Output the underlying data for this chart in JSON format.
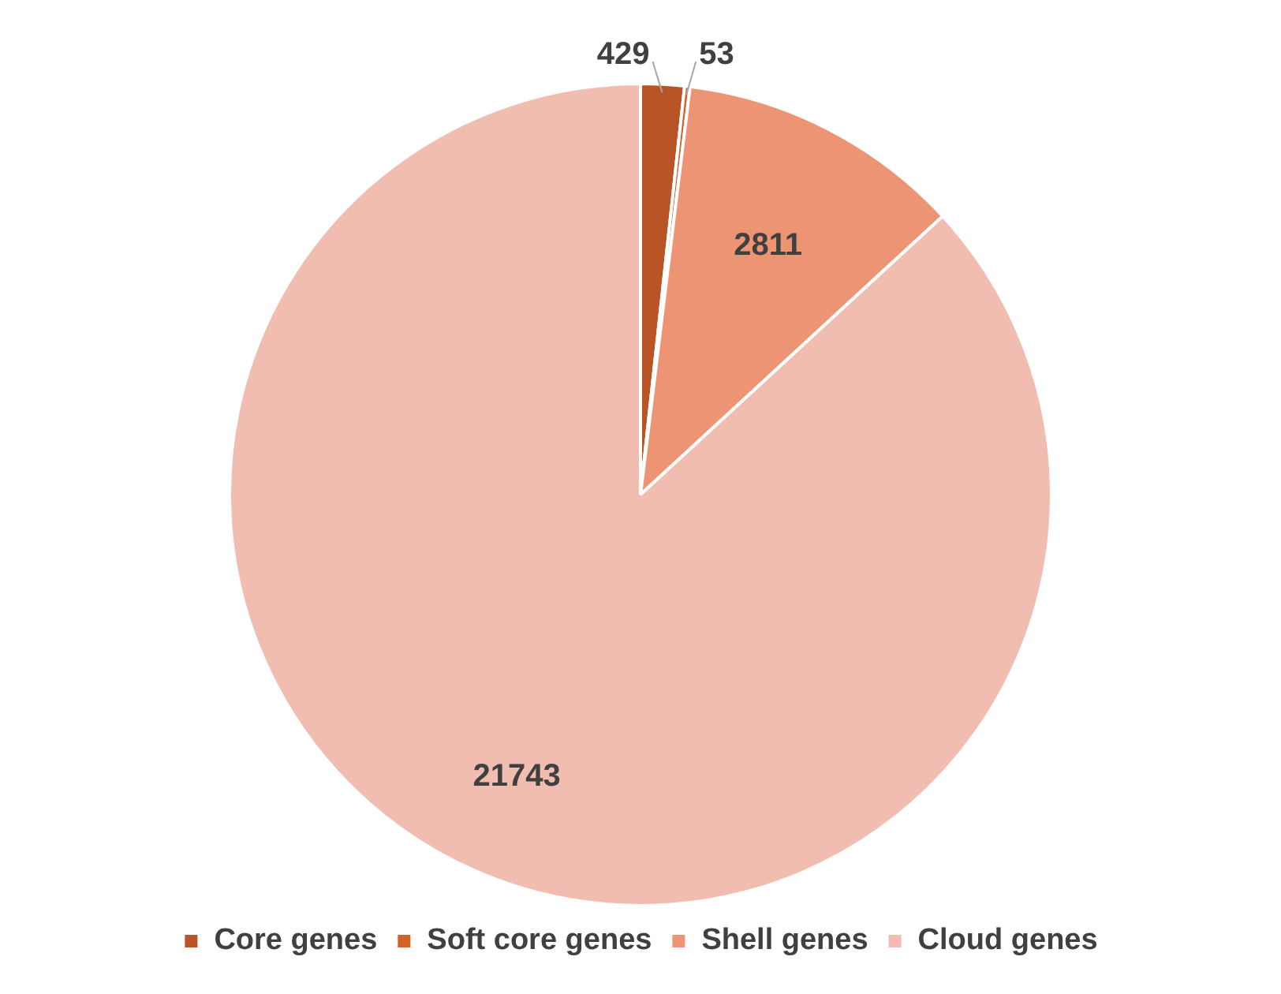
{
  "chart_data": {
    "type": "pie",
    "categories": [
      "Core genes",
      "Soft core genes",
      "Shell genes",
      "Cloud genes"
    ],
    "values": [
      429,
      53,
      2811,
      21743
    ],
    "colors": [
      "#b85426",
      "#d0622a",
      "#ec9474",
      "#f2bdb1"
    ],
    "data_labels": true,
    "legend": "bottom"
  }
}
